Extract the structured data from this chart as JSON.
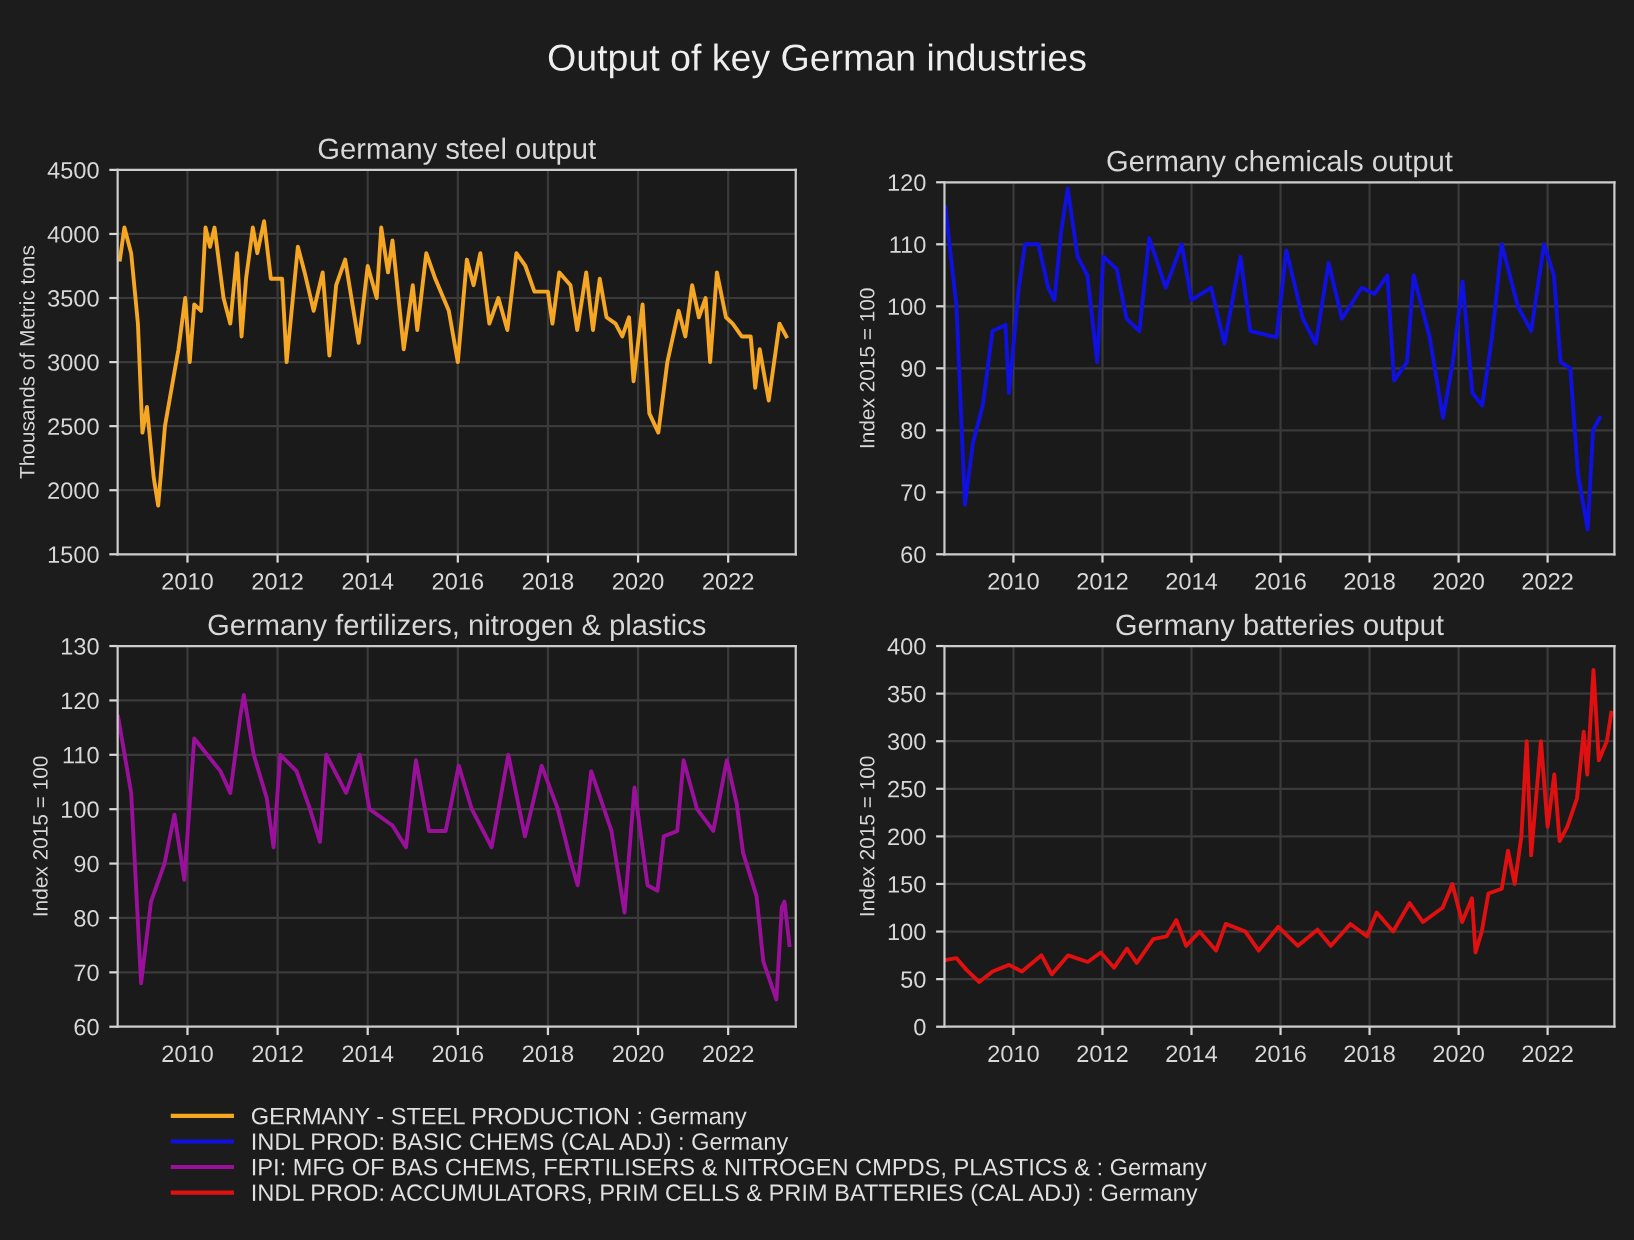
{
  "chart_data": [
    {
      "type": "line",
      "title": "Germany steel output",
      "ylabel": "Thousands of Metric tons",
      "annotations": [
        "Output of key German industries"
      ],
      "xlim": [
        2008.45,
        2023.5
      ],
      "xticks": [
        2010,
        2012,
        2014,
        2016,
        2018,
        2020,
        2022
      ],
      "ylim": [
        1500,
        4500
      ],
      "yticks": [
        1500,
        2000,
        2500,
        3000,
        3500,
        4000,
        4500
      ],
      "grid": true,
      "legend": "bottom",
      "series": [
        {
          "name": "GERMANY - STEEL PRODUCTION : Germany",
          "color": "#f5a623",
          "x": [
            2008.5,
            2008.6,
            2008.75,
            2008.9,
            2009.0,
            2009.1,
            2009.25,
            2009.35,
            2009.5,
            2009.8,
            2009.95,
            2010.05,
            2010.15,
            2010.3,
            2010.4,
            2010.5,
            2010.6,
            2010.8,
            2010.95,
            2011.1,
            2011.2,
            2011.3,
            2011.45,
            2011.55,
            2011.7,
            2011.85,
            2012.1,
            2012.2,
            2012.45,
            2012.6,
            2012.8,
            2013.0,
            2013.15,
            2013.3,
            2013.5,
            2013.8,
            2014.0,
            2014.2,
            2014.3,
            2014.45,
            2014.55,
            2014.8,
            2015.0,
            2015.1,
            2015.3,
            2015.5,
            2015.8,
            2016.0,
            2016.2,
            2016.35,
            2016.5,
            2016.7,
            2016.9,
            2017.1,
            2017.3,
            2017.5,
            2017.7,
            2018.0,
            2018.1,
            2018.25,
            2018.5,
            2018.65,
            2018.85,
            2019.0,
            2019.15,
            2019.3,
            2019.5,
            2019.65,
            2019.8,
            2019.9,
            2020.1,
            2020.25,
            2020.45,
            2020.65,
            2020.9,
            2021.05,
            2021.2,
            2021.35,
            2021.5,
            2021.6,
            2021.75,
            2021.95,
            2022.1,
            2022.3,
            2022.5,
            2022.6,
            2022.7,
            2022.9,
            2023.14,
            2023.29
          ],
          "values": [
            3800,
            4050,
            3850,
            3300,
            2450,
            2650,
            2100,
            1880,
            2500,
            3100,
            3500,
            3000,
            3450,
            3400,
            4050,
            3900,
            4050,
            3500,
            3300,
            3850,
            3200,
            3650,
            4050,
            3850,
            4100,
            3650,
            3650,
            3000,
            3900,
            3700,
            3400,
            3700,
            3050,
            3600,
            3800,
            3150,
            3750,
            3500,
            4050,
            3700,
            3950,
            3100,
            3600,
            3250,
            3850,
            3650,
            3400,
            3000,
            3800,
            3600,
            3850,
            3300,
            3500,
            3250,
            3850,
            3750,
            3550,
            3550,
            3300,
            3700,
            3600,
            3250,
            3700,
            3250,
            3650,
            3350,
            3300,
            3200,
            3350,
            2850,
            3450,
            2600,
            2450,
            3000,
            3400,
            3200,
            3600,
            3350,
            3500,
            3000,
            3700,
            3350,
            3300,
            3200,
            3200,
            2800,
            3100,
            2700,
            3300,
            3200
          ]
        }
      ]
    },
    {
      "type": "line",
      "title": "Germany chemicals output",
      "ylabel": "Index 2015 = 100",
      "xlim": [
        2008.45,
        2023.5
      ],
      "xticks": [
        2010,
        2012,
        2014,
        2016,
        2018,
        2020,
        2022
      ],
      "ylim": [
        60,
        120
      ],
      "yticks": [
        60,
        70,
        80,
        90,
        100,
        110,
        120
      ],
      "grid": true,
      "legend": "bottom",
      "series": [
        {
          "name": "INDL PROD: BASIC CHEMS (CAL ADJ) : Germany",
          "color": "#1010e0",
          "x": [
            2008.47,
            2008.72,
            2008.91,
            2009.09,
            2009.31,
            2009.53,
            2009.82,
            2009.9,
            2010.12,
            2010.26,
            2010.56,
            2010.78,
            2010.92,
            2011.07,
            2011.22,
            2011.44,
            2011.66,
            2011.88,
            2012.02,
            2012.32,
            2012.54,
            2012.83,
            2013.05,
            2013.42,
            2013.78,
            2014.0,
            2014.44,
            2014.74,
            2015.1,
            2015.32,
            2015.91,
            2016.13,
            2016.5,
            2016.79,
            2017.08,
            2017.38,
            2017.82,
            2018.11,
            2018.4,
            2018.55,
            2018.84,
            2018.99,
            2019.35,
            2019.65,
            2019.87,
            2020.09,
            2020.31,
            2020.53,
            2020.75,
            2020.97,
            2021.33,
            2021.63,
            2021.92,
            2022.14,
            2022.29,
            2022.51,
            2022.68,
            2022.9,
            2023.02,
            2023.17
          ],
          "values": [
            116,
            100,
            68,
            78,
            84,
            96,
            97,
            86,
            103,
            110,
            110,
            103,
            101,
            112,
            119,
            108,
            105,
            91,
            108,
            106,
            98,
            96,
            111,
            103,
            110,
            101,
            103,
            94,
            108,
            96,
            95,
            109,
            98,
            94,
            107,
            98,
            103,
            102,
            105,
            88,
            91,
            105,
            95,
            82,
            91,
            104,
            86,
            84,
            95,
            110,
            100,
            96,
            110,
            105,
            91,
            90,
            73,
            64,
            80,
            82
          ]
        }
      ]
    },
    {
      "type": "line",
      "title": "Germany fertilizers, nitrogen & plastics",
      "ylabel": "Index 2015 = 100",
      "xlim": [
        2008.45,
        2023.5
      ],
      "xticks": [
        2010,
        2012,
        2014,
        2016,
        2018,
        2020,
        2022
      ],
      "ylim": [
        60,
        130
      ],
      "yticks": [
        60,
        70,
        80,
        90,
        100,
        110,
        120,
        130
      ],
      "grid": true,
      "legend": "bottom",
      "series": [
        {
          "name": "IPI: MFG OF BAS CHEMS, FERTILISERS & NITROGEN CMPDS, PLASTICS & : Germany",
          "color": "#9b109b",
          "x": [
            2008.46,
            2008.75,
            2008.97,
            2009.19,
            2009.49,
            2009.71,
            2009.93,
            2010.15,
            2010.44,
            2010.73,
            2010.95,
            2011.17,
            2011.25,
            2011.47,
            2011.76,
            2011.91,
            2012.06,
            2012.42,
            2012.72,
            2012.94,
            2013.08,
            2013.52,
            2013.82,
            2014.04,
            2014.55,
            2014.85,
            2015.07,
            2015.36,
            2015.73,
            2016.02,
            2016.31,
            2016.75,
            2017.12,
            2017.49,
            2017.86,
            2018.22,
            2018.52,
            2018.66,
            2018.96,
            2019.41,
            2019.7,
            2019.92,
            2020.21,
            2020.43,
            2020.57,
            2020.87,
            2021.01,
            2021.31,
            2021.67,
            2021.97,
            2022.19,
            2022.33,
            2022.63,
            2022.78,
            2023.07,
            2023.19,
            2023.25,
            2023.36
          ],
          "values": [
            117,
            103,
            68,
            83,
            90,
            99,
            87,
            113,
            110,
            107,
            103,
            117,
            121,
            110,
            102,
            93,
            110,
            107,
            100,
            94,
            110,
            103,
            110,
            100,
            97,
            93,
            109,
            96,
            96,
            108,
            100,
            93,
            110,
            95,
            108,
            100,
            90,
            86,
            107,
            96,
            81,
            104,
            86,
            85,
            95,
            96,
            109,
            100,
            96,
            109,
            101,
            92,
            84,
            72,
            65,
            82,
            83,
            75
          ]
        }
      ]
    },
    {
      "type": "line",
      "title": "Germany batteries output",
      "ylabel": "Index 2015 = 100",
      "xlim": [
        2008.45,
        2023.5
      ],
      "xticks": [
        2010,
        2012,
        2014,
        2016,
        2018,
        2020,
        2022
      ],
      "ylim": [
        0,
        400
      ],
      "yticks": [
        0,
        50,
        100,
        150,
        200,
        250,
        300,
        350,
        400
      ],
      "grid": true,
      "legend": "bottom",
      "series": [
        {
          "name": "INDL PROD: ACCUMULATORS, PRIM CELLS & PRIM BATTERIES (CAL ADJ) : Germany",
          "color": "#e01010",
          "x": [
            2008.46,
            2008.72,
            2008.94,
            2009.23,
            2009.53,
            2009.9,
            2010.19,
            2010.63,
            2010.86,
            2011.23,
            2011.67,
            2011.96,
            2012.26,
            2012.55,
            2012.77,
            2013.14,
            2013.44,
            2013.66,
            2013.88,
            2014.18,
            2014.55,
            2014.77,
            2015.21,
            2015.51,
            2015.95,
            2016.39,
            2016.83,
            2017.13,
            2017.57,
            2017.94,
            2018.16,
            2018.53,
            2018.9,
            2019.2,
            2019.64,
            2019.86,
            2020.08,
            2020.3,
            2020.38,
            2020.52,
            2020.67,
            2020.97,
            2021.11,
            2021.26,
            2021.41,
            2021.53,
            2021.63,
            2021.85,
            2022.0,
            2022.15,
            2022.27,
            2022.44,
            2022.66,
            2022.81,
            2022.89,
            2023.03,
            2023.15,
            2023.33,
            2023.43
          ],
          "values": [
            70,
            72,
            60,
            47,
            58,
            65,
            58,
            75,
            55,
            75,
            68,
            78,
            62,
            82,
            67,
            92,
            95,
            112,
            85,
            100,
            80,
            108,
            100,
            80,
            105,
            85,
            102,
            85,
            108,
            95,
            120,
            100,
            130,
            110,
            125,
            150,
            110,
            135,
            78,
            100,
            140,
            145,
            185,
            150,
            200,
            300,
            180,
            300,
            210,
            265,
            195,
            210,
            240,
            310,
            265,
            375,
            280,
            300,
            330
          ]
        }
      ]
    }
  ]
}
